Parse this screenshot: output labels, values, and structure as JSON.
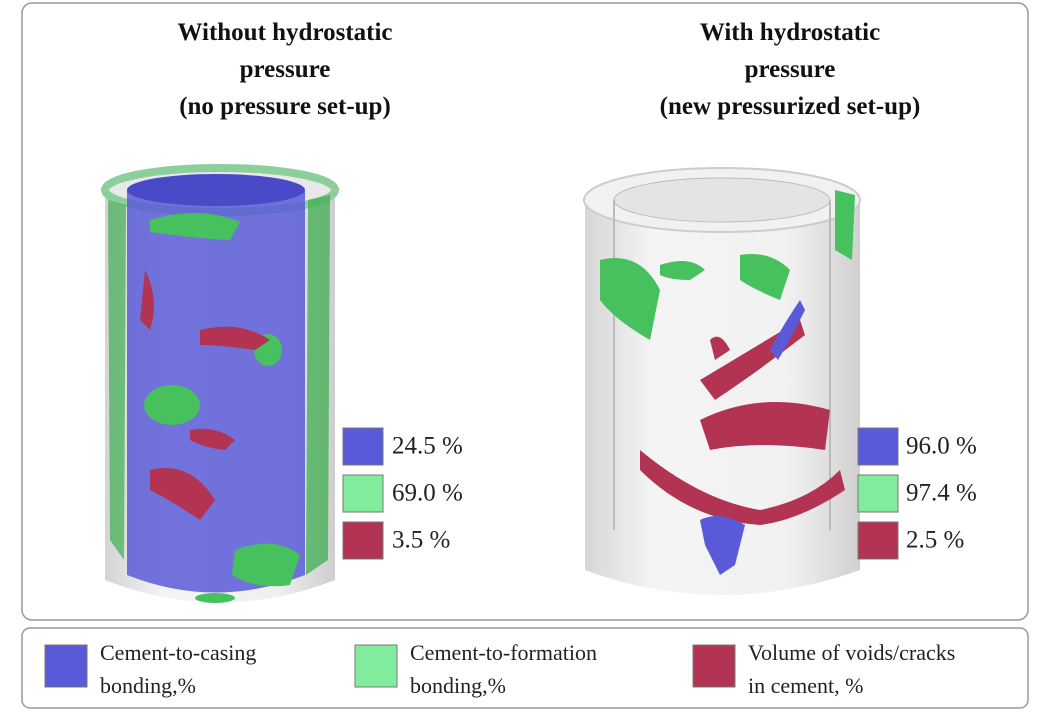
{
  "panels": [
    {
      "title": [
        "Without hydrostatic",
        "pressure",
        "(no pressure set-up)"
      ],
      "values": [
        "24.5 %",
        "69.0 %",
        "3.5 %"
      ]
    },
    {
      "title": [
        "With hydrostatic",
        "pressure",
        "(new pressurized set-up)"
      ],
      "values": [
        "96.0 %",
        "97.4 %",
        "2.5 %"
      ]
    }
  ],
  "legend": [
    {
      "label": [
        "Cement-to-casing",
        "bonding,%"
      ],
      "color": "#5a5ad8"
    },
    {
      "label": [
        "Cement-to-formation",
        "bonding,%"
      ],
      "color": "#80ec9c"
    },
    {
      "label": [
        "Volume of voids/cracks",
        "in cement, %"
      ],
      "color": "#b23452"
    }
  ]
}
